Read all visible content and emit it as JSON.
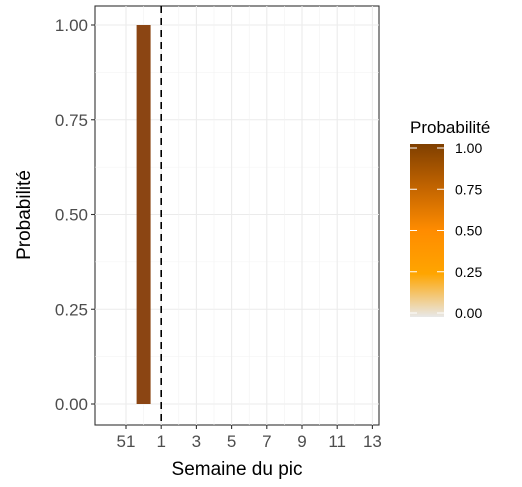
{
  "chart_data": {
    "type": "bar",
    "xlabel": "Semaine du pic",
    "ylabel": "Probabilité",
    "x_ticks": [
      "51",
      "1",
      "3",
      "5",
      "7",
      "9",
      "11",
      "13"
    ],
    "y_ticks": [
      "0.00",
      "0.25",
      "0.50",
      "0.75",
      "1.00"
    ],
    "ylim": [
      0,
      1
    ],
    "categories": [
      "52"
    ],
    "values": [
      1.0
    ],
    "reference_line": {
      "at": "1",
      "style": "dashed"
    },
    "grid": true,
    "legend": {
      "title": "Probabilité",
      "position": "right",
      "labels": [
        "1.00",
        "0.75",
        "0.50",
        "0.25",
        "0.00"
      ],
      "gradient_colors": [
        "#7f3f00",
        "#c26400",
        "#ff8c00",
        "#ffa500",
        "#e8e8e8"
      ]
    },
    "bar_color": "#8b4513"
  }
}
